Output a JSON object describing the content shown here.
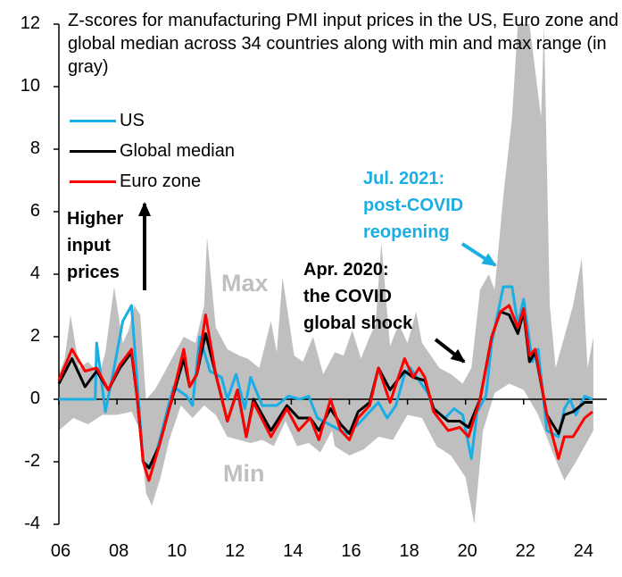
{
  "chart_data": {
    "type": "area+line",
    "title": "Z-scores for manufacturing PMI input prices in the US, Euro zone and global median across 34 countries along with min and max range (in gray)",
    "xlabel": "",
    "ylabel": "",
    "xlim": [
      2006,
      2024.6
    ],
    "ylim": [
      -4,
      12
    ],
    "yticks": [
      "12",
      "10",
      "8",
      "6",
      "4",
      "2",
      "0",
      "-2",
      "-4"
    ],
    "ytick_values": [
      12,
      10,
      8,
      6,
      4,
      2,
      0,
      -2,
      -4
    ],
    "xticks": [
      "06",
      "08",
      "10",
      "12",
      "14",
      "16",
      "18",
      "20",
      "22",
      "24"
    ],
    "xtick_values": [
      2006,
      2008,
      2010,
      2012,
      2014,
      2016,
      2018,
      2020,
      2022,
      2024
    ],
    "legend": [
      "US",
      "Global median",
      "Euro zone"
    ],
    "legend_position": "top-left",
    "colors": {
      "US": "#1aaee5",
      "Global median": "#000000",
      "Euro zone": "#ff0000",
      "range": "#bfbfbf"
    },
    "range_max": [
      [
        2006,
        0.8
      ],
      [
        2006.2,
        1.3
      ],
      [
        2006.4,
        2.7
      ],
      [
        2006.7,
        1.0
      ],
      [
        2007,
        1.2
      ],
      [
        2007.4,
        0.8
      ],
      [
        2007.6,
        1.5
      ],
      [
        2007.9,
        3.6
      ],
      [
        2008.2,
        1.8
      ],
      [
        2008.4,
        2.2
      ],
      [
        2008.6,
        3.0
      ],
      [
        2008.8,
        2.7
      ],
      [
        2009,
        0.0
      ],
      [
        2009.3,
        0.3
      ],
      [
        2009.6,
        0.8
      ],
      [
        2010,
        1.5
      ],
      [
        2010.3,
        2.0
      ],
      [
        2010.7,
        1.8
      ],
      [
        2011,
        3.0
      ],
      [
        2011.1,
        5.2
      ],
      [
        2011.4,
        2.3
      ],
      [
        2011.8,
        1.6
      ],
      [
        2012.2,
        1.4
      ],
      [
        2012.5,
        1.3
      ],
      [
        2012.9,
        1.0
      ],
      [
        2013.3,
        2.5
      ],
      [
        2013.5,
        1.5
      ],
      [
        2013.7,
        3.9
      ],
      [
        2014.1,
        1.4
      ],
      [
        2014.4,
        1.2
      ],
      [
        2014.75,
        2.0
      ],
      [
        2015.1,
        0.8
      ],
      [
        2015.5,
        1.5
      ],
      [
        2015.8,
        1.4
      ],
      [
        2016.1,
        2.2
      ],
      [
        2016.4,
        1.3
      ],
      [
        2016.7,
        2.0
      ],
      [
        2016.9,
        2.4
      ],
      [
        2017.1,
        5.0
      ],
      [
        2017.4,
        1.7
      ],
      [
        2017.7,
        2.4
      ],
      [
        2018,
        1.8
      ],
      [
        2018.3,
        2.8
      ],
      [
        2018.5,
        1.8
      ],
      [
        2018.8,
        1.4
      ],
      [
        2019.1,
        1.0
      ],
      [
        2019.5,
        0.8
      ],
      [
        2019.9,
        0.5
      ],
      [
        2020.2,
        1.0
      ],
      [
        2020.5,
        3.5
      ],
      [
        2020.8,
        4.0
      ],
      [
        2021,
        3.5
      ],
      [
        2021.3,
        6.5
      ],
      [
        2021.6,
        9.0
      ],
      [
        2021.8,
        12
      ],
      [
        2022.2,
        12
      ],
      [
        2022.6,
        9
      ],
      [
        2022.7,
        12
      ],
      [
        2022.9,
        3.0
      ],
      [
        2023.1,
        1.0
      ],
      [
        2023.4,
        2.0
      ],
      [
        2023.7,
        3.0
      ],
      [
        2024,
        4.5
      ],
      [
        2024.2,
        1.0
      ],
      [
        2024.4,
        2.0
      ]
    ],
    "range_min": [
      [
        2006,
        -1.0
      ],
      [
        2006.5,
        -0.6
      ],
      [
        2007,
        -0.8
      ],
      [
        2007.5,
        -0.5
      ],
      [
        2008,
        -0.5
      ],
      [
        2008.5,
        -0.4
      ],
      [
        2008.8,
        -1.0
      ],
      [
        2009,
        -3.0
      ],
      [
        2009.2,
        -3.4
      ],
      [
        2009.5,
        -2.5
      ],
      [
        2009.8,
        -1.3
      ],
      [
        2010.2,
        -0.2
      ],
      [
        2010.6,
        -0.6
      ],
      [
        2011,
        -0.2
      ],
      [
        2011.4,
        -0.5
      ],
      [
        2011.8,
        -1.2
      ],
      [
        2012.2,
        -1.3
      ],
      [
        2012.6,
        -1.4
      ],
      [
        2013,
        -1.3
      ],
      [
        2013.4,
        -1.5
      ],
      [
        2013.8,
        -0.7
      ],
      [
        2014.2,
        -1.5
      ],
      [
        2014.6,
        -1.4
      ],
      [
        2015,
        -1.7
      ],
      [
        2015.4,
        -1.0
      ],
      [
        2015.5,
        -1.5
      ],
      [
        2016,
        -1.8
      ],
      [
        2016.5,
        -1.6
      ],
      [
        2017,
        -1.2
      ],
      [
        2017.5,
        -1.3
      ],
      [
        2018,
        -0.5
      ],
      [
        2018.5,
        -0.6
      ],
      [
        2019,
        -1.5
      ],
      [
        2019.5,
        -1.8
      ],
      [
        2020,
        -2.5
      ],
      [
        2020.3,
        -4.0
      ],
      [
        2020.6,
        -1.0
      ],
      [
        2021,
        0.2
      ],
      [
        2021.5,
        0.5
      ],
      [
        2022,
        0.3
      ],
      [
        2022.5,
        -0.5
      ],
      [
        2023,
        -1.7
      ],
      [
        2023.4,
        -2.6
      ],
      [
        2023.8,
        -2.0
      ],
      [
        2024.4,
        -1.0
      ]
    ],
    "series": [
      {
        "name": "US",
        "points": [
          [
            2006,
            0
          ],
          [
            2007.25,
            0
          ],
          [
            2007.3,
            1.8
          ],
          [
            2007.6,
            -0.4
          ],
          [
            2007.9,
            1.0
          ],
          [
            2008.2,
            2.5
          ],
          [
            2008.5,
            3.0
          ],
          [
            2008.9,
            -2.0
          ],
          [
            2009.2,
            -2.2
          ],
          [
            2009.5,
            -1.2
          ],
          [
            2009.8,
            -0.1
          ],
          [
            2009.95,
            0.4
          ],
          [
            2010.4,
            0.1
          ],
          [
            2010.6,
            -0.2
          ],
          [
            2010.85,
            2.0
          ],
          [
            2011.2,
            0.9
          ],
          [
            2011.6,
            0.7
          ],
          [
            2011.8,
            0.0
          ],
          [
            2012.1,
            0.8
          ],
          [
            2012.4,
            -0.3
          ],
          [
            2012.6,
            0.7
          ],
          [
            2013,
            -0.2
          ],
          [
            2013.5,
            -0.2
          ],
          [
            2013.9,
            0.1
          ],
          [
            2014.3,
            0.0
          ],
          [
            2014.6,
            0.1
          ],
          [
            2014.9,
            -0.6
          ],
          [
            2015.3,
            -0.8
          ],
          [
            2015.5,
            -0.9
          ],
          [
            2015.9,
            -1.1
          ],
          [
            2016.3,
            -0.8
          ],
          [
            2016.6,
            -0.5
          ],
          [
            2017,
            -0.1
          ],
          [
            2017.3,
            -0.6
          ],
          [
            2017.6,
            -0.2
          ],
          [
            2017.9,
            0.8
          ],
          [
            2018.1,
            1.0
          ],
          [
            2018.4,
            0.6
          ],
          [
            2018.7,
            0.2
          ],
          [
            2018.9,
            -0.3
          ],
          [
            2019.3,
            -0.6
          ],
          [
            2019.6,
            -0.3
          ],
          [
            2019.9,
            -0.5
          ],
          [
            2020.2,
            -1.9
          ],
          [
            2020.4,
            -0.4
          ],
          [
            2020.7,
            0.1
          ],
          [
            2020.9,
            1.8
          ],
          [
            2021.3,
            3.6
          ],
          [
            2021.6,
            3.6
          ],
          [
            2021.8,
            2.4
          ],
          [
            2022,
            3.2
          ],
          [
            2022.3,
            1.2
          ],
          [
            2022.5,
            1.6
          ],
          [
            2022.8,
            -1.0
          ],
          [
            2023.2,
            -1.2
          ],
          [
            2023.4,
            -0.3
          ],
          [
            2023.6,
            0.0
          ],
          [
            2023.8,
            -0.5
          ],
          [
            2024.1,
            0.1
          ],
          [
            2024.37,
            0.0
          ]
        ]
      },
      {
        "name": "Global median",
        "points": [
          [
            2006,
            0.5
          ],
          [
            2006.45,
            1.3
          ],
          [
            2006.9,
            0.4
          ],
          [
            2007.3,
            0.9
          ],
          [
            2007.7,
            0.3
          ],
          [
            2008.1,
            1.0
          ],
          [
            2008.5,
            1.5
          ],
          [
            2008.7,
            0.0
          ],
          [
            2008.9,
            -2.0
          ],
          [
            2009.1,
            -2.2
          ],
          [
            2009.45,
            -1.5
          ],
          [
            2009.8,
            -0.3
          ],
          [
            2010.3,
            1.3
          ],
          [
            2010.5,
            0.4
          ],
          [
            2010.75,
            0.8
          ],
          [
            2011.05,
            2.1
          ],
          [
            2011.4,
            0.8
          ],
          [
            2011.8,
            -0.7
          ],
          [
            2012.15,
            0.3
          ],
          [
            2012.45,
            -1.2
          ],
          [
            2012.7,
            0.0
          ],
          [
            2013.3,
            -1.0
          ],
          [
            2013.85,
            -0.2
          ],
          [
            2014.25,
            -0.6
          ],
          [
            2014.65,
            -0.6
          ],
          [
            2014.95,
            -1.0
          ],
          [
            2015.35,
            -0.3
          ],
          [
            2015.7,
            -0.8
          ],
          [
            2016,
            -1.1
          ],
          [
            2016.3,
            -0.4
          ],
          [
            2016.7,
            -0.1
          ],
          [
            2017,
            1.0
          ],
          [
            2017.4,
            0.3
          ],
          [
            2017.9,
            0.9
          ],
          [
            2018.2,
            0.7
          ],
          [
            2018.6,
            0.6
          ],
          [
            2018.9,
            -0.3
          ],
          [
            2019.4,
            -0.7
          ],
          [
            2019.8,
            -0.7
          ],
          [
            2020.1,
            -0.9
          ],
          [
            2020.5,
            0.0
          ],
          [
            2020.9,
            2.0
          ],
          [
            2021.2,
            2.8
          ],
          [
            2021.5,
            2.7
          ],
          [
            2021.8,
            2.1
          ],
          [
            2022,
            2.8
          ],
          [
            2022.2,
            1.2
          ],
          [
            2022.4,
            1.5
          ],
          [
            2022.8,
            -0.5
          ],
          [
            2023.2,
            -1.1
          ],
          [
            2023.4,
            -0.5
          ],
          [
            2023.7,
            -0.4
          ],
          [
            2024.1,
            -0.1
          ],
          [
            2024.37,
            -0.1
          ]
        ]
      },
      {
        "name": "Euro zone",
        "points": [
          [
            2006,
            0.6
          ],
          [
            2006.45,
            1.6
          ],
          [
            2006.9,
            0.9
          ],
          [
            2007.3,
            1.0
          ],
          [
            2007.7,
            0.3
          ],
          [
            2008.1,
            1.1
          ],
          [
            2008.5,
            1.6
          ],
          [
            2008.7,
            0.0
          ],
          [
            2008.9,
            -2.0
          ],
          [
            2009.1,
            -2.6
          ],
          [
            2009.45,
            -1.5
          ],
          [
            2009.8,
            -0.3
          ],
          [
            2010.3,
            1.6
          ],
          [
            2010.5,
            0.4
          ],
          [
            2010.75,
            0.8
          ],
          [
            2011.05,
            2.7
          ],
          [
            2011.4,
            0.8
          ],
          [
            2011.8,
            -0.7
          ],
          [
            2012.15,
            0.3
          ],
          [
            2012.45,
            -1.2
          ],
          [
            2012.7,
            -0.1
          ],
          [
            2013.3,
            -1.2
          ],
          [
            2013.85,
            -0.3
          ],
          [
            2014.25,
            -1.0
          ],
          [
            2014.65,
            -0.6
          ],
          [
            2014.95,
            -1.3
          ],
          [
            2015.35,
            0.0
          ],
          [
            2015.7,
            -1.0
          ],
          [
            2016,
            -1.3
          ],
          [
            2016.3,
            -0.6
          ],
          [
            2016.7,
            -0.2
          ],
          [
            2017,
            1.0
          ],
          [
            2017.4,
            -0.1
          ],
          [
            2017.9,
            1.3
          ],
          [
            2018.2,
            0.7
          ],
          [
            2018.4,
            1.0
          ],
          [
            2018.6,
            0.7
          ],
          [
            2018.9,
            -0.4
          ],
          [
            2019.4,
            -1.0
          ],
          [
            2019.8,
            -0.9
          ],
          [
            2020.1,
            -1.2
          ],
          [
            2020.5,
            0.0
          ],
          [
            2020.9,
            2.0
          ],
          [
            2021.2,
            2.8
          ],
          [
            2021.5,
            3.0
          ],
          [
            2021.8,
            2.3
          ],
          [
            2022,
            2.9
          ],
          [
            2022.2,
            1.4
          ],
          [
            2022.4,
            1.6
          ],
          [
            2022.8,
            -0.5
          ],
          [
            2023.2,
            -1.9
          ],
          [
            2023.4,
            -1.2
          ],
          [
            2023.7,
            -1.2
          ],
          [
            2024.1,
            -0.6
          ],
          [
            2024.37,
            -0.4
          ]
        ]
      }
    ],
    "annotations": {
      "higher": [
        "Higher",
        "input",
        "prices"
      ],
      "max_label": "Max",
      "min_label": "Min",
      "covid": [
        "Apr. 2020:",
        "the COVID",
        "global shock"
      ],
      "reopen": [
        "Jul. 2021:",
        "post-COVID",
        "reopening"
      ]
    }
  }
}
